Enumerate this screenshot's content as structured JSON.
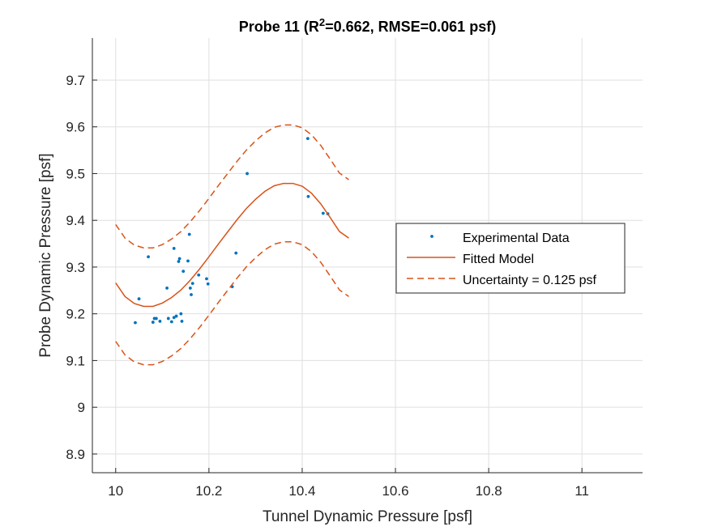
{
  "chart_data": {
    "type": "scatter",
    "title": {
      "prefix": "Probe 11 (R",
      "superscript": "2",
      "suffix": "=0.662, RMSE=0.061 psf)"
    },
    "xlabel": "Tunnel Dynamic Pressure [psf]",
    "ylabel": "Probe Dynamic Pressure [psf]",
    "xlim": [
      9.95,
      11.13
    ],
    "ylim": [
      8.86,
      9.79
    ],
    "x_ticks": [
      10,
      10.2,
      10.4,
      10.6,
      10.8,
      11
    ],
    "x_tick_labels": [
      "10",
      "10.2",
      "10.4",
      "10.6",
      "10.8",
      "11"
    ],
    "y_ticks": [
      8.9,
      9,
      9.1,
      9.2,
      9.3,
      9.4,
      9.5,
      9.6,
      9.7
    ],
    "y_tick_labels": [
      "8.9",
      "9",
      "9.1",
      "9.2",
      "9.3",
      "9.4",
      "9.5",
      "9.6",
      "9.7"
    ],
    "grid": true,
    "legend_position": "right",
    "uncertainty": 0.125,
    "series": [
      {
        "name": "Experimental Data",
        "style": "points",
        "color": "#0072BD",
        "points": [
          [
            10.042,
            9.181
          ],
          [
            10.05,
            9.232
          ],
          [
            10.07,
            9.322
          ],
          [
            10.08,
            9.182
          ],
          [
            10.083,
            9.19
          ],
          [
            10.087,
            9.19
          ],
          [
            10.095,
            9.184
          ],
          [
            10.11,
            9.255
          ],
          [
            10.113,
            9.19
          ],
          [
            10.12,
            9.183
          ],
          [
            10.125,
            9.192
          ],
          [
            10.125,
            9.34
          ],
          [
            10.13,
            9.195
          ],
          [
            10.135,
            9.312
          ],
          [
            10.137,
            9.318
          ],
          [
            10.14,
            9.2
          ],
          [
            10.142,
            9.184
          ],
          [
            10.145,
            9.291
          ],
          [
            10.155,
            9.313
          ],
          [
            10.158,
            9.37
          ],
          [
            10.16,
            9.255
          ],
          [
            10.162,
            9.241
          ],
          [
            10.165,
            9.265
          ],
          [
            10.178,
            9.283
          ],
          [
            10.195,
            9.275
          ],
          [
            10.198,
            9.264
          ],
          [
            10.25,
            9.258
          ],
          [
            10.258,
            9.33
          ],
          [
            10.282,
            9.5
          ],
          [
            10.412,
            9.575
          ],
          [
            10.413,
            9.451
          ],
          [
            10.445,
            9.415
          ],
          [
            10.455,
            9.414
          ]
        ]
      },
      {
        "name": "Fitted Model",
        "style": "solid",
        "color": "#D95319",
        "points": [
          [
            10.0,
            9.266
          ],
          [
            10.02,
            9.237
          ],
          [
            10.04,
            9.222
          ],
          [
            10.06,
            9.216
          ],
          [
            10.08,
            9.216
          ],
          [
            10.1,
            9.223
          ],
          [
            10.12,
            9.235
          ],
          [
            10.14,
            9.251
          ],
          [
            10.16,
            9.272
          ],
          [
            10.18,
            9.296
          ],
          [
            10.2,
            9.322
          ],
          [
            10.22,
            9.349
          ],
          [
            10.24,
            9.375
          ],
          [
            10.26,
            9.401
          ],
          [
            10.28,
            9.425
          ],
          [
            10.3,
            9.445
          ],
          [
            10.32,
            9.462
          ],
          [
            10.34,
            9.474
          ],
          [
            10.36,
            9.479
          ],
          [
            10.38,
            9.479
          ],
          [
            10.4,
            9.473
          ],
          [
            10.42,
            9.458
          ],
          [
            10.44,
            9.435
          ],
          [
            10.46,
            9.406
          ],
          [
            10.48,
            9.376
          ],
          [
            10.5,
            9.362
          ]
        ]
      },
      {
        "name": "Uncertainty = 0.125 psf",
        "style": "dashed",
        "color": "#D95319",
        "points": [
          [
            10.0,
            9.391
          ],
          [
            10.02,
            9.362
          ],
          [
            10.04,
            9.347
          ],
          [
            10.06,
            9.341
          ],
          [
            10.08,
            9.341
          ],
          [
            10.1,
            9.348
          ],
          [
            10.12,
            9.36
          ],
          [
            10.14,
            9.376
          ],
          [
            10.16,
            9.397
          ],
          [
            10.18,
            9.421
          ],
          [
            10.2,
            9.447
          ],
          [
            10.22,
            9.474
          ],
          [
            10.24,
            9.5
          ],
          [
            10.26,
            9.526
          ],
          [
            10.28,
            9.55
          ],
          [
            10.3,
            9.57
          ],
          [
            10.32,
            9.587
          ],
          [
            10.34,
            9.599
          ],
          [
            10.36,
            9.604
          ],
          [
            10.38,
            9.604
          ],
          [
            10.4,
            9.598
          ],
          [
            10.42,
            9.583
          ],
          [
            10.44,
            9.56
          ],
          [
            10.46,
            9.531
          ],
          [
            10.48,
            9.501
          ],
          [
            10.5,
            9.487
          ]
        ]
      },
      {
        "style": "dashed",
        "color": "#D95319",
        "points": [
          [
            10.0,
            9.141
          ],
          [
            10.02,
            9.112
          ],
          [
            10.04,
            9.097
          ],
          [
            10.06,
            9.091
          ],
          [
            10.08,
            9.091
          ],
          [
            10.1,
            9.098
          ],
          [
            10.12,
            9.11
          ],
          [
            10.14,
            9.126
          ],
          [
            10.16,
            9.147
          ],
          [
            10.18,
            9.171
          ],
          [
            10.2,
            9.197
          ],
          [
            10.22,
            9.224
          ],
          [
            10.24,
            9.25
          ],
          [
            10.26,
            9.276
          ],
          [
            10.28,
            9.3
          ],
          [
            10.3,
            9.32
          ],
          [
            10.32,
            9.337
          ],
          [
            10.34,
            9.349
          ],
          [
            10.36,
            9.354
          ],
          [
            10.38,
            9.354
          ],
          [
            10.4,
            9.348
          ],
          [
            10.42,
            9.333
          ],
          [
            10.44,
            9.31
          ],
          [
            10.46,
            9.281
          ],
          [
            10.48,
            9.251
          ],
          [
            10.5,
            9.237
          ]
        ]
      }
    ]
  }
}
